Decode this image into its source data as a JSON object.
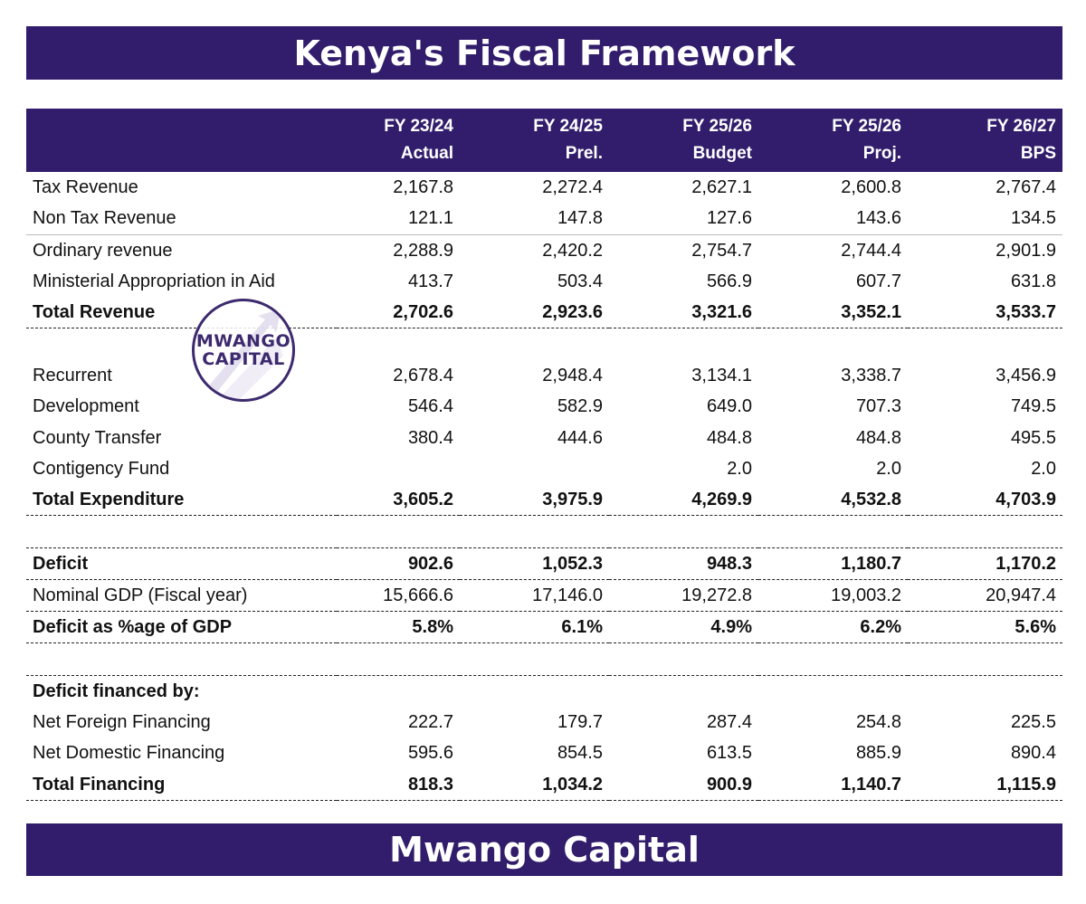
{
  "title": "Kenya's Fiscal Framework",
  "footer": "Mwango Capital",
  "logo": {
    "line1": "MWANGO",
    "line2": "CAPITAL"
  },
  "colors": {
    "banner": "#311d6b",
    "text": "#111111"
  },
  "header": {
    "years": [
      "FY 23/24",
      "FY 24/25",
      "FY 25/26",
      "FY 25/26",
      "FY 26/27"
    ],
    "types": [
      "Actual",
      "Prel.",
      "Budget",
      "Proj.",
      "BPS"
    ]
  },
  "rows": [
    {
      "label": "Tax Revenue",
      "values": [
        "2,167.8",
        "2,272.4",
        "2,627.1",
        "2,600.8",
        "2,767.4"
      ]
    },
    {
      "label": "Non Tax Revenue",
      "values": [
        "121.1",
        "147.8",
        "127.6",
        "143.6",
        "134.5"
      ]
    },
    {
      "label": "Ordinary revenue",
      "values": [
        "2,288.9",
        "2,420.2",
        "2,754.7",
        "2,744.4",
        "2,901.9"
      ]
    },
    {
      "label": "Ministerial Appropriation in Aid",
      "values": [
        "413.7",
        "503.4",
        "566.9",
        "607.7",
        "631.8"
      ]
    },
    {
      "label": "Total Revenue",
      "values": [
        "2,702.6",
        "2,923.6",
        "3,321.6",
        "3,352.1",
        "3,533.7"
      ]
    },
    {
      "label": "",
      "values": [
        "",
        "",
        "",
        "",
        ""
      ]
    },
    {
      "label": "Recurrent",
      "values": [
        "2,678.4",
        "2,948.4",
        "3,134.1",
        "3,338.7",
        "3,456.9"
      ]
    },
    {
      "label": "Development",
      "values": [
        "546.4",
        "582.9",
        "649.0",
        "707.3",
        "749.5"
      ]
    },
    {
      "label": "County Transfer",
      "values": [
        "380.4",
        "444.6",
        "484.8",
        "484.8",
        "495.5"
      ]
    },
    {
      "label": "Contigency Fund",
      "values": [
        "",
        "",
        "2.0",
        "2.0",
        "2.0"
      ]
    },
    {
      "label": "Total Expenditure",
      "values": [
        "3,605.2",
        "3,975.9",
        "4,269.9",
        "4,532.8",
        "4,703.9"
      ]
    },
    {
      "label": "",
      "values": [
        "",
        "",
        "",
        "",
        ""
      ]
    },
    {
      "label": "Deficit",
      "values": [
        "902.6",
        "1,052.3",
        "948.3",
        "1,180.7",
        "1,170.2"
      ]
    },
    {
      "label": "Nominal GDP (Fiscal year)",
      "values": [
        "15,666.6",
        "17,146.0",
        "19,272.8",
        "19,003.2",
        "20,947.4"
      ]
    },
    {
      "label": "Deficit as %age of GDP",
      "values": [
        "5.8%",
        "6.1%",
        "4.9%",
        "6.2%",
        "5.6%"
      ]
    },
    {
      "label": "",
      "values": [
        "",
        "",
        "",
        "",
        ""
      ]
    },
    {
      "label": "Deficit financed by:",
      "values": [
        "",
        "",
        "",
        "",
        ""
      ]
    },
    {
      "label": "Net Foreign Financing",
      "values": [
        "222.7",
        "179.7",
        "287.4",
        "254.8",
        "225.5"
      ]
    },
    {
      "label": "Net Domestic Financing",
      "values": [
        "595.6",
        "854.5",
        "613.5",
        "885.9",
        "890.4"
      ]
    },
    {
      "label": "Total Financing",
      "values": [
        "818.3",
        "1,034.2",
        "900.9",
        "1,140.7",
        "1,115.9"
      ]
    }
  ]
}
